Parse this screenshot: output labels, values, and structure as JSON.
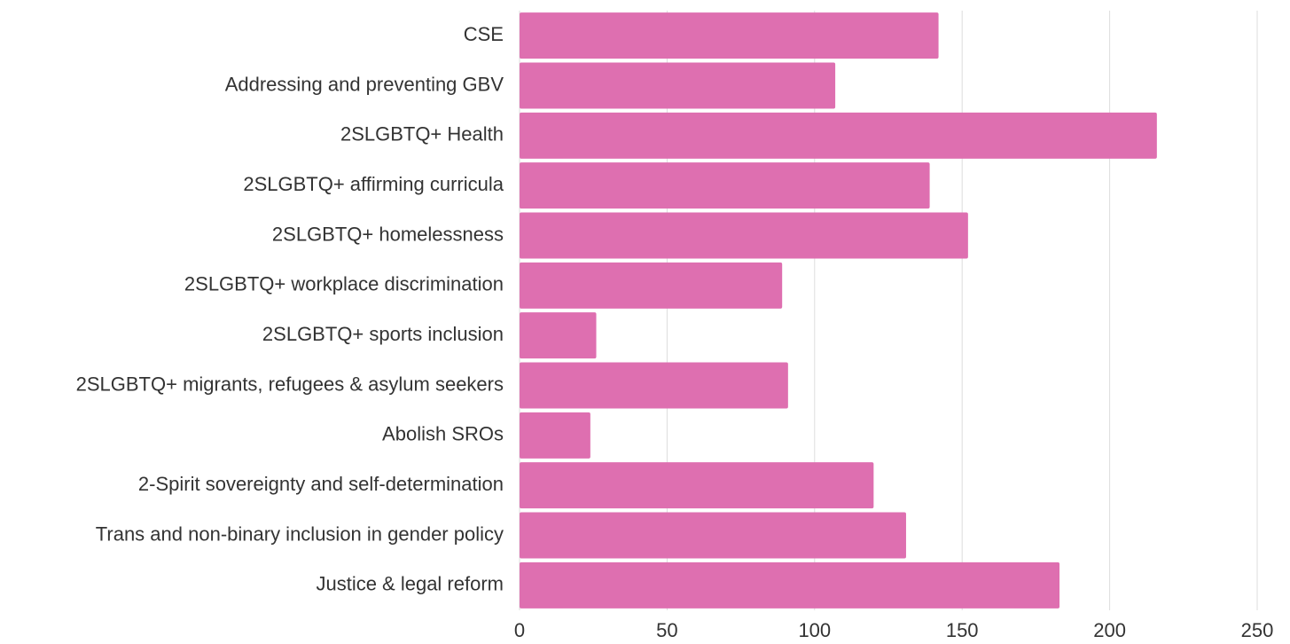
{
  "chart_data": {
    "type": "barh",
    "categories": [
      "CSE",
      "Addressing and preventing GBV",
      "2SLGBTQ+ Health",
      "2SLGBTQ+ affirming curricula",
      "2SLGBTQ+ homelessness",
      "2SLGBTQ+ workplace discrimination",
      "2SLGBTQ+ sports inclusion",
      "2SLGBTQ+ migrants, refugees & asylum seekers",
      "Abolish SROs",
      "2-Spirit sovereignty and self-determination",
      "Trans and non-binary inclusion in gender policy",
      "Justice & legal reform"
    ],
    "values": [
      142,
      107,
      216,
      139,
      152,
      89,
      26,
      91,
      24,
      120,
      131,
      183
    ],
    "color": "#de6fb0",
    "xlim": [
      0,
      250
    ],
    "xticks": [
      0,
      50,
      100,
      150,
      200,
      250
    ],
    "grid": true
  }
}
